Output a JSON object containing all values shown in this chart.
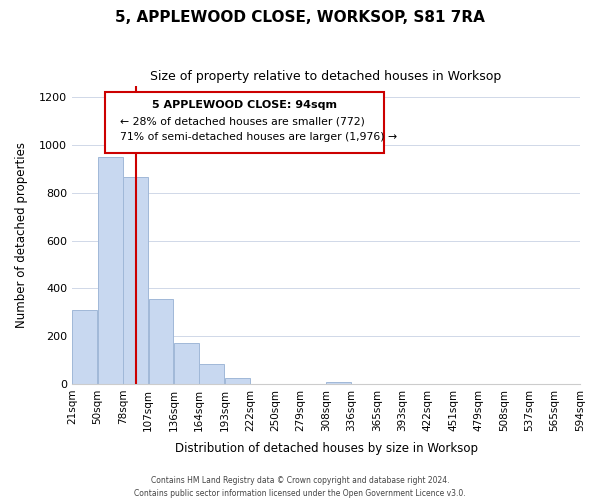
{
  "title": "5, APPLEWOOD CLOSE, WORKSOP, S81 7RA",
  "subtitle": "Size of property relative to detached houses in Worksop",
  "xlabel": "Distribution of detached houses by size in Worksop",
  "ylabel": "Number of detached properties",
  "tick_labels": [
    "21sqm",
    "50sqm",
    "78sqm",
    "107sqm",
    "136sqm",
    "164sqm",
    "193sqm",
    "222sqm",
    "250sqm",
    "279sqm",
    "308sqm",
    "336sqm",
    "365sqm",
    "393sqm",
    "422sqm",
    "451sqm",
    "479sqm",
    "508sqm",
    "537sqm",
    "565sqm",
    "594sqm"
  ],
  "bar_values": [
    310,
    950,
    865,
    355,
    170,
    82,
    25,
    0,
    0,
    0,
    10,
    0,
    0,
    0,
    0,
    0,
    0,
    0,
    0,
    0
  ],
  "bar_color": "#c8d8f0",
  "bar_edge_color": "#a0b8d8",
  "vline_x": 2.5,
  "vline_color": "#cc0000",
  "annotation_title": "5 APPLEWOOD CLOSE: 94sqm",
  "annotation_line1": "← 28% of detached houses are smaller (772)",
  "annotation_line2": "71% of semi-detached houses are larger (1,976) →",
  "annotation_box_color": "#ffffff",
  "annotation_box_edge": "#cc0000",
  "ylim": [
    0,
    1250
  ],
  "yticks": [
    0,
    200,
    400,
    600,
    800,
    1000,
    1200
  ],
  "footer1": "Contains HM Land Registry data © Crown copyright and database right 2024.",
  "footer2": "Contains public sector information licensed under the Open Government Licence v3.0."
}
